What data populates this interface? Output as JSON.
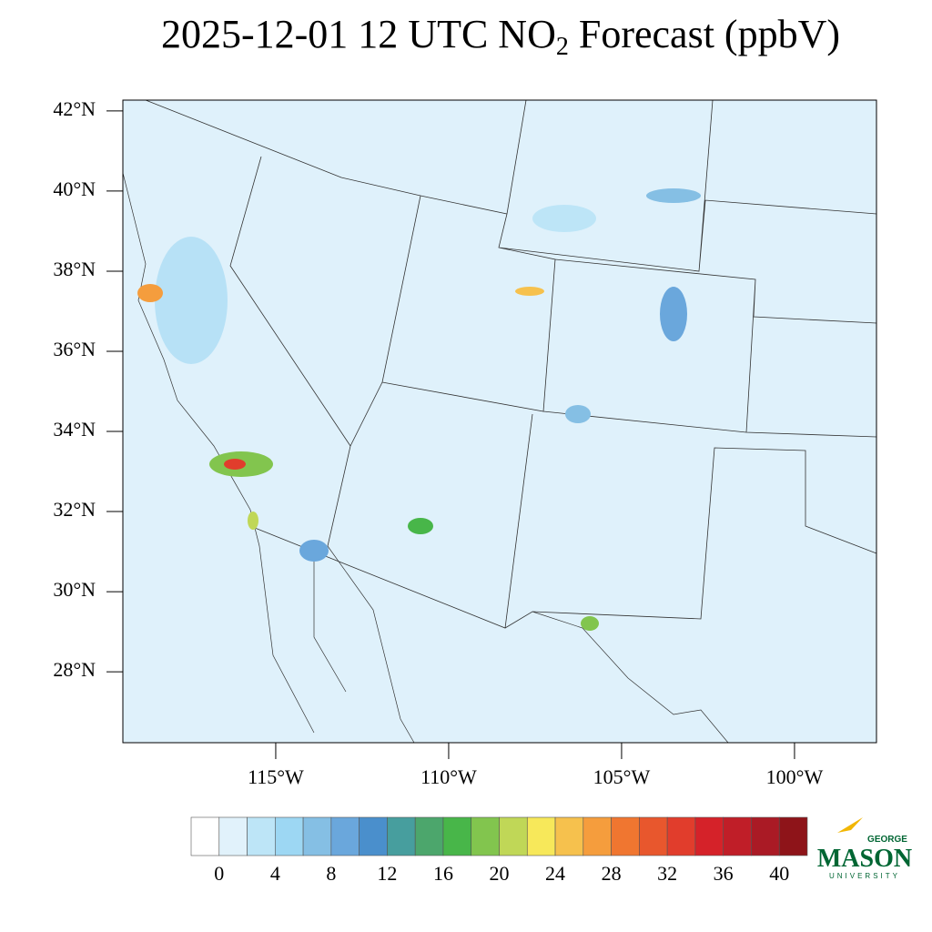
{
  "chart_data": {
    "type": "map",
    "title": {
      "main": "2025-12-01 12 UTC NO",
      "sub": "2",
      "rest": " Forecast (ppbV)"
    },
    "latlim": [
      26.23,
      42.27
    ],
    "lonlim": [
      -119.42,
      -97.63
    ],
    "lat_ticks": [
      {
        "value": 42,
        "label": "42°N"
      },
      {
        "value": 40,
        "label": "40°N"
      },
      {
        "value": 38,
        "label": "38°N"
      },
      {
        "value": 36,
        "label": "36°N"
      },
      {
        "value": 34,
        "label": "34°N"
      },
      {
        "value": 32,
        "label": "32°N"
      },
      {
        "value": 30,
        "label": "30°N"
      },
      {
        "value": 28,
        "label": "28°N"
      }
    ],
    "lon_ticks": [
      {
        "value": -115,
        "label": "115°W"
      },
      {
        "value": -110,
        "label": "110°W"
      },
      {
        "value": -105,
        "label": "105°W"
      },
      {
        "value": -100,
        "label": "100°W"
      }
    ],
    "colorbar": {
      "levels": [
        0,
        2,
        4,
        6,
        8,
        10,
        12,
        14,
        16,
        18,
        20,
        22,
        24,
        26,
        28,
        30,
        32,
        34,
        36,
        38,
        40
      ],
      "labels": [
        0,
        4,
        8,
        12,
        16,
        20,
        24,
        28,
        32,
        36,
        40
      ],
      "colors": [
        "#ffffff",
        "#e1f2fb",
        "#bde5f7",
        "#9dd7f3",
        "#85bfe4",
        "#6aa7dc",
        "#4a8fcc",
        "#479e9e",
        "#4ca66c",
        "#48b649",
        "#82c54e",
        "#c0d757",
        "#f7e85a",
        "#f6c14d",
        "#f59d3d",
        "#f07630",
        "#e8572d",
        "#e13d2c",
        "#d52229",
        "#c01e28",
        "#aa1a25",
        "#8e1419"
      ]
    },
    "logo": {
      "top": "GEORGE",
      "name": "MASON",
      "bottom": "UNIVERSITY"
    }
  }
}
